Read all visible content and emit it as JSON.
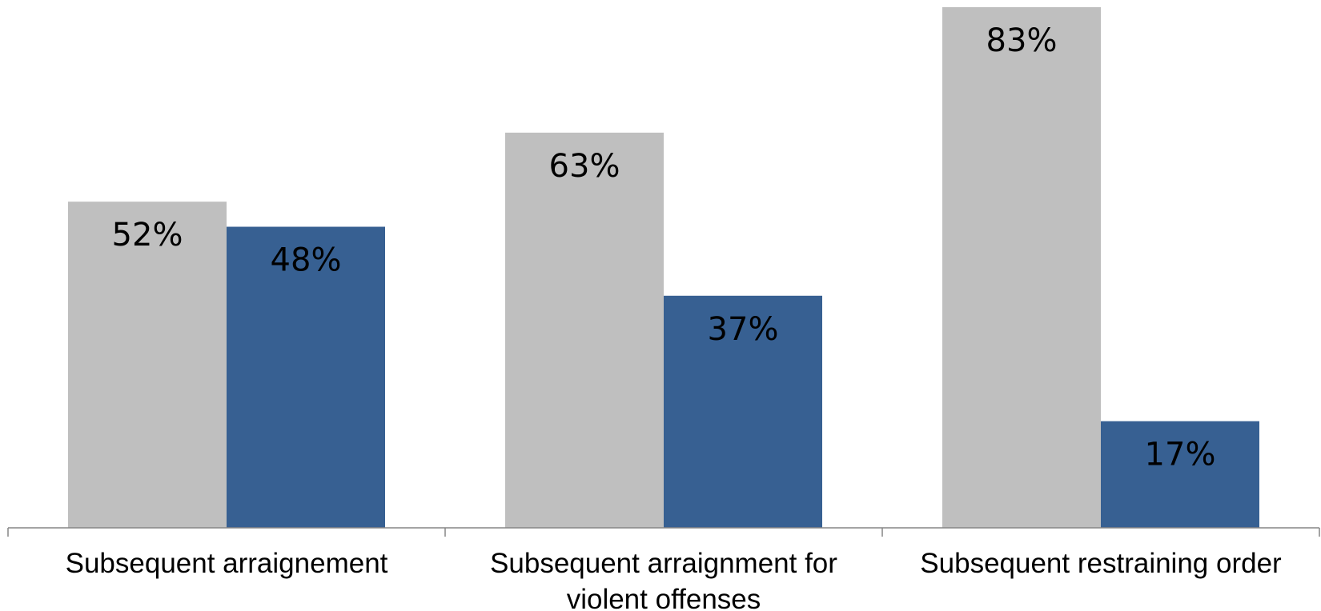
{
  "chart_data": {
    "type": "bar",
    "title": "",
    "xlabel": "",
    "ylabel": "",
    "ylim": [
      0,
      83
    ],
    "grid": false,
    "legend": "none",
    "categories": [
      [
        "Subsequent arraignement"
      ],
      [
        "Subsequent arraignment for",
        "violent offenses"
      ],
      [
        "Subsequent  restraining order"
      ]
    ],
    "series": [
      {
        "color": "#bfbfbf",
        "values": [
          52,
          63,
          83
        ],
        "labels": [
          "52%",
          "63%",
          "83%"
        ]
      },
      {
        "color": "#376092",
        "values": [
          48,
          37,
          17
        ],
        "labels": [
          "48%",
          "37%",
          "17%"
        ]
      }
    ]
  }
}
